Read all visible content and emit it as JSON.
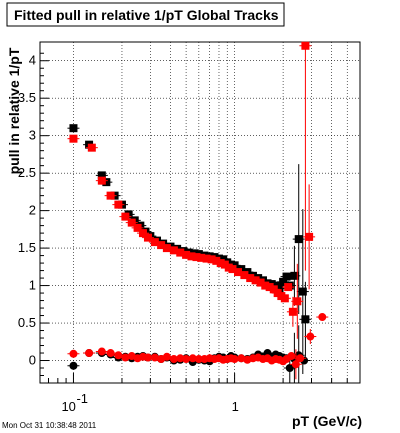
{
  "title": "Fitted pull in relative 1/pT  Global Tracks",
  "timestamp": "Mon Oct 31 10:38:48 2011",
  "chart_data": {
    "type": "scatter",
    "title": "Fitted pull in relative 1/pT  Global Tracks",
    "xlabel": "pT (GeV/c)",
    "ylabel": "pull in relative 1/pT",
    "x_scale": "log",
    "xlim": [
      0.062,
      6.0
    ],
    "ylim": [
      -0.3,
      4.25
    ],
    "grid": true,
    "x_tick_labels": [
      "10",
      "-1",
      "1"
    ],
    "y_tick_labels": [
      "0",
      "0.5",
      "1",
      "1.5",
      "2",
      "2.5",
      "3",
      "3.5",
      "4"
    ],
    "y_ticks": [
      0,
      0.5,
      1,
      1.5,
      2,
      2.5,
      3,
      3.5,
      4
    ],
    "colors": {
      "black_series": "#000000",
      "red_series": "#ff0000"
    },
    "series": [
      {
        "marker": "square",
        "color": "#000000",
        "points": [
          [
            0.1,
            3.1
          ],
          [
            0.125,
            2.88
          ],
          [
            0.15,
            2.47
          ],
          [
            0.16,
            2.38
          ],
          [
            0.18,
            2.2
          ],
          [
            0.2,
            2.08
          ],
          [
            0.22,
            1.95
          ],
          [
            0.24,
            1.87
          ],
          [
            0.26,
            1.8
          ],
          [
            0.28,
            1.72
          ],
          [
            0.3,
            1.66
          ],
          [
            0.33,
            1.6
          ],
          [
            0.36,
            1.56
          ],
          [
            0.4,
            1.52
          ],
          [
            0.44,
            1.49
          ],
          [
            0.48,
            1.46
          ],
          [
            0.52,
            1.44
          ],
          [
            0.56,
            1.43
          ],
          [
            0.6,
            1.42
          ],
          [
            0.65,
            1.4
          ],
          [
            0.7,
            1.39
          ],
          [
            0.75,
            1.38
          ],
          [
            0.8,
            1.36
          ],
          [
            0.85,
            1.35
          ],
          [
            0.9,
            1.31
          ],
          [
            0.95,
            1.28
          ],
          [
            1.0,
            1.27
          ],
          [
            1.1,
            1.22
          ],
          [
            1.2,
            1.18
          ],
          [
            1.3,
            1.13
          ],
          [
            1.4,
            1.1
          ],
          [
            1.5,
            1.07
          ],
          [
            1.6,
            1.03
          ],
          [
            1.7,
            1.02
          ],
          [
            1.8,
            1.0
          ],
          [
            1.9,
            0.96
          ],
          [
            2.0,
            1.05
          ],
          [
            2.1,
            1.12
          ],
          [
            2.2,
            1.0
          ],
          [
            2.35,
            1.13
          ],
          [
            2.5,
            1.62
          ],
          [
            2.65,
            0.92
          ],
          [
            2.75,
            0.55
          ]
        ],
        "errors": [
          [
            2.35,
            0.4
          ],
          [
            2.5,
            1.0
          ],
          [
            2.65,
            1.1
          ],
          [
            2.75,
            0.5
          ]
        ]
      },
      {
        "marker": "square",
        "color": "#ff0000",
        "points": [
          [
            0.1,
            2.96
          ],
          [
            0.13,
            2.84
          ],
          [
            0.15,
            2.4
          ],
          [
            0.17,
            2.2
          ],
          [
            0.19,
            2.08
          ],
          [
            0.21,
            1.92
          ],
          [
            0.23,
            1.84
          ],
          [
            0.25,
            1.77
          ],
          [
            0.27,
            1.7
          ],
          [
            0.29,
            1.64
          ],
          [
            0.32,
            1.58
          ],
          [
            0.35,
            1.54
          ],
          [
            0.38,
            1.5
          ],
          [
            0.42,
            1.47
          ],
          [
            0.46,
            1.44
          ],
          [
            0.5,
            1.41
          ],
          [
            0.54,
            1.39
          ],
          [
            0.58,
            1.38
          ],
          [
            0.62,
            1.37
          ],
          [
            0.67,
            1.36
          ],
          [
            0.72,
            1.35
          ],
          [
            0.77,
            1.33
          ],
          [
            0.82,
            1.3
          ],
          [
            0.87,
            1.28
          ],
          [
            0.92,
            1.24
          ],
          [
            0.97,
            1.22
          ],
          [
            1.05,
            1.18
          ],
          [
            1.15,
            1.14
          ],
          [
            1.25,
            1.1
          ],
          [
            1.35,
            1.07
          ],
          [
            1.45,
            1.04
          ],
          [
            1.55,
            1.0
          ],
          [
            1.65,
            0.98
          ],
          [
            1.75,
            0.95
          ],
          [
            1.85,
            0.9
          ],
          [
            1.95,
            0.86
          ],
          [
            2.05,
            0.83
          ],
          [
            2.15,
            0.98
          ],
          [
            2.3,
            0.65
          ],
          [
            2.45,
            0.79
          ],
          [
            2.75,
            4.2
          ],
          [
            2.9,
            1.65
          ]
        ],
        "errors": [
          [
            2.3,
            0.2
          ],
          [
            2.45,
            0.5
          ],
          [
            2.75,
            3.0
          ],
          [
            2.9,
            0.7
          ]
        ]
      },
      {
        "marker": "circle",
        "color": "#000000",
        "points": [
          [
            0.1,
            -0.07
          ],
          [
            0.125,
            0.1
          ],
          [
            0.15,
            0.1
          ],
          [
            0.17,
            0.08
          ],
          [
            0.19,
            0.04
          ],
          [
            0.21,
            0.05
          ],
          [
            0.23,
            0.03
          ],
          [
            0.25,
            0.05
          ],
          [
            0.27,
            0.06
          ],
          [
            0.29,
            0.04
          ],
          [
            0.32,
            0.05
          ],
          [
            0.35,
            0.02
          ],
          [
            0.38,
            0.04
          ],
          [
            0.42,
            0.0
          ],
          [
            0.46,
            0.01
          ],
          [
            0.5,
            0.03
          ],
          [
            0.55,
            -0.02
          ],
          [
            0.6,
            0.01
          ],
          [
            0.65,
            0.0
          ],
          [
            0.7,
            -0.01
          ],
          [
            0.75,
            0.03
          ],
          [
            0.8,
            0.05
          ],
          [
            0.85,
            0.04
          ],
          [
            0.9,
            0.02
          ],
          [
            0.95,
            0.06
          ],
          [
            1.0,
            0.04
          ],
          [
            1.1,
            0.03
          ],
          [
            1.2,
            0.02
          ],
          [
            1.3,
            0.04
          ],
          [
            1.4,
            0.08
          ],
          [
            1.5,
            0.05
          ],
          [
            1.6,
            0.1
          ],
          [
            1.7,
            0.05
          ],
          [
            1.8,
            0.08
          ],
          [
            1.9,
            0.06
          ],
          [
            2.0,
            0.04
          ],
          [
            2.1,
            0.03
          ],
          [
            2.2,
            -0.1
          ],
          [
            2.35,
            0.02
          ],
          [
            2.5,
            0.07
          ],
          [
            2.7,
            0.0
          ]
        ],
        "errors": [
          [
            2.2,
            0.2
          ],
          [
            2.35,
            0.35
          ],
          [
            2.5,
            0.4
          ]
        ]
      },
      {
        "marker": "circle",
        "color": "#ff0000",
        "points": [
          [
            0.1,
            0.09
          ],
          [
            0.125,
            0.1
          ],
          [
            0.15,
            0.12
          ],
          [
            0.17,
            0.1
          ],
          [
            0.19,
            0.07
          ],
          [
            0.21,
            0.04
          ],
          [
            0.23,
            0.06
          ],
          [
            0.25,
            0.03
          ],
          [
            0.27,
            0.05
          ],
          [
            0.29,
            0.04
          ],
          [
            0.32,
            0.04
          ],
          [
            0.35,
            0.02
          ],
          [
            0.38,
            0.05
          ],
          [
            0.42,
            0.02
          ],
          [
            0.46,
            0.03
          ],
          [
            0.5,
            0.02
          ],
          [
            0.55,
            0.03
          ],
          [
            0.6,
            0.02
          ],
          [
            0.65,
            0.02
          ],
          [
            0.7,
            0.03
          ],
          [
            0.75,
            0.02
          ],
          [
            0.8,
            0.03
          ],
          [
            0.85,
            0.01
          ],
          [
            0.9,
            0.02
          ],
          [
            0.95,
            0.03
          ],
          [
            1.0,
            0.02
          ],
          [
            1.1,
            0.03
          ],
          [
            1.2,
            0.01
          ],
          [
            1.3,
            0.03
          ],
          [
            1.4,
            0.04
          ],
          [
            1.5,
            0.02
          ],
          [
            1.6,
            0.03
          ],
          [
            1.7,
            0.0
          ],
          [
            1.8,
            0.02
          ],
          [
            1.9,
            0.01
          ],
          [
            2.0,
            -0.01
          ],
          [
            2.1,
            0.02
          ],
          [
            2.25,
            0.06
          ],
          [
            2.4,
            -0.05
          ],
          [
            2.55,
            0.03
          ],
          [
            2.95,
            0.32
          ],
          [
            3.5,
            0.58
          ]
        ],
        "errors": [
          [
            2.4,
            0.2
          ],
          [
            2.95,
            0.1
          ]
        ]
      }
    ]
  }
}
